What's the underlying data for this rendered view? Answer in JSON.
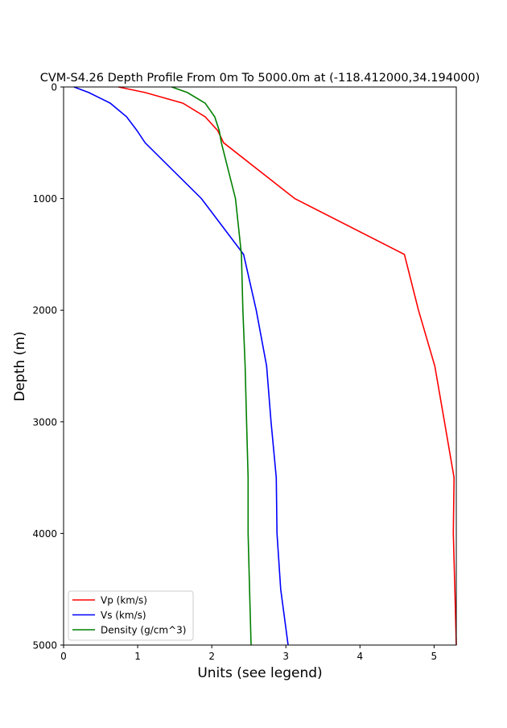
{
  "chart_data": {
    "type": "line",
    "title": "CVM-S4.26 Depth Profile From 0m To 5000.0m at (-118.412000,34.194000)",
    "xlabel": "Units (see legend)",
    "ylabel": "Depth (m)",
    "xlim": [
      0,
      5.3
    ],
    "ylim": [
      5000,
      0
    ],
    "y_inverted": true,
    "xticks": [
      0,
      1,
      2,
      3,
      4,
      5
    ],
    "yticks": [
      0,
      1000,
      2000,
      3000,
      4000,
      5000
    ],
    "grid": false,
    "legend_position": "bottom-left",
    "depth": [
      0,
      50,
      145,
      267,
      390,
      500,
      1000,
      1500,
      2000,
      2500,
      3000,
      3500,
      4000,
      4500,
      5000
    ],
    "series": [
      {
        "name": "Vp (km/s)",
        "color": "#ff0000",
        "values": [
          0.74,
          1.1,
          1.61,
          1.91,
          2.08,
          2.16,
          3.12,
          4.6,
          4.79,
          5.01,
          5.14,
          5.27,
          5.26,
          5.28,
          5.3
        ]
      },
      {
        "name": "Vs (km/s)",
        "color": "#0000ff",
        "values": [
          0.14,
          0.34,
          0.63,
          0.85,
          0.99,
          1.1,
          1.86,
          2.43,
          2.6,
          2.74,
          2.8,
          2.87,
          2.88,
          2.93,
          3.03
        ]
      },
      {
        "name": "Density (g/cm^3)",
        "color": "#008000",
        "values": [
          1.46,
          1.67,
          1.91,
          2.04,
          2.1,
          2.13,
          2.32,
          2.4,
          2.42,
          2.45,
          2.47,
          2.49,
          2.49,
          2.51,
          2.53
        ]
      }
    ]
  }
}
